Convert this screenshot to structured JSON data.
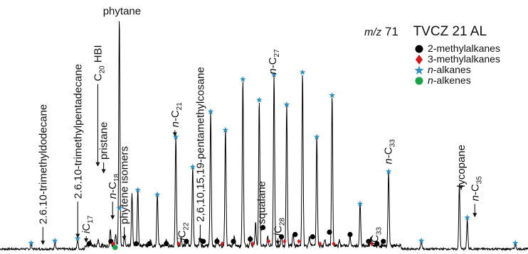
{
  "header": {
    "mz_prefix": "m/z",
    "mz_value": "71",
    "sample": "TVCZ 21 AL"
  },
  "legend": [
    {
      "symbol": "circle",
      "color": "#000000",
      "italic": "",
      "text": "2-methylalkanes"
    },
    {
      "symbol": "diamond",
      "color": "#d7191c",
      "italic": "",
      "text": "3-methylalkanes"
    },
    {
      "symbol": "star",
      "color": "#2f8fc4",
      "italic": "n",
      "text": "-alkanes"
    },
    {
      "symbol": "circle",
      "color": "#1aa34a",
      "italic": "n",
      "text": "-alkenes"
    }
  ],
  "colors": {
    "trace": "#000000",
    "alkane_star": "#2f8fc4",
    "methyl2": "#000000",
    "methyl3": "#d7191c",
    "alkene": "#1aa34a"
  },
  "chart_data": {
    "type": "line",
    "title": "",
    "xlabel": "",
    "ylabel": "",
    "xlim": [
      0,
      100
    ],
    "ylim": [
      0,
      100
    ],
    "peaks": [
      {
        "x": 5.9,
        "h": 2
      },
      {
        "x": 10.4,
        "h": 3
      },
      {
        "x": 14.7,
        "h": 4
      },
      {
        "x": 17.1,
        "h": 2
      },
      {
        "x": 18.6,
        "h": 3
      },
      {
        "x": 20.9,
        "h": 7
      },
      {
        "x": 21.9,
        "h": 5
      },
      {
        "x": 22.6,
        "h": 100
      },
      {
        "x": 23.6,
        "h": 5
      },
      {
        "x": 25.0,
        "h": 23
      },
      {
        "x": 26.1,
        "h": 25
      },
      {
        "x": 28.5,
        "h": 3
      },
      {
        "x": 29.8,
        "h": 23
      },
      {
        "x": 31.5,
        "h": 3
      },
      {
        "x": 33.3,
        "h": 48
      },
      {
        "x": 34.3,
        "h": 3
      },
      {
        "x": 35.4,
        "h": 3
      },
      {
        "x": 36.5,
        "h": 35
      },
      {
        "x": 37.9,
        "h": 4
      },
      {
        "x": 39.9,
        "h": 59
      },
      {
        "x": 41.1,
        "h": 4
      },
      {
        "x": 42.7,
        "h": 51
      },
      {
        "x": 44.4,
        "h": 4
      },
      {
        "x": 46.0,
        "h": 73
      },
      {
        "x": 47.4,
        "h": 4
      },
      {
        "x": 48.4,
        "h": 10
      },
      {
        "x": 49.1,
        "h": 64
      },
      {
        "x": 50.7,
        "h": 4
      },
      {
        "x": 51.9,
        "h": 75
      },
      {
        "x": 53.3,
        "h": 4
      },
      {
        "x": 54.3,
        "h": 62
      },
      {
        "x": 55.5,
        "h": 5
      },
      {
        "x": 57.3,
        "h": 76
      },
      {
        "x": 58.6,
        "h": 4
      },
      {
        "x": 60.0,
        "h": 48
      },
      {
        "x": 61.5,
        "h": 3
      },
      {
        "x": 62.9,
        "h": 66
      },
      {
        "x": 64.3,
        "h": 3
      },
      {
        "x": 66.3,
        "h": 5
      },
      {
        "x": 68.2,
        "h": 19
      },
      {
        "x": 70.2,
        "h": 3
      },
      {
        "x": 73.6,
        "h": 33
      },
      {
        "x": 79.8,
        "h": 3
      },
      {
        "x": 87.0,
        "h": 28
      },
      {
        "x": 88.5,
        "h": 13
      },
      {
        "x": 97.6,
        "h": 2
      }
    ],
    "alkane_markers": [
      {
        "x": 5.9,
        "y": 2
      },
      {
        "x": 10.4,
        "y": 3
      },
      {
        "x": 14.7,
        "y": 4
      },
      {
        "x": 22.6,
        "y": 17
      },
      {
        "x": 26.1,
        "y": 25
      },
      {
        "x": 29.8,
        "y": 23
      },
      {
        "x": 33.3,
        "y": 48
      },
      {
        "x": 36.5,
        "y": 35
      },
      {
        "x": 39.9,
        "y": 59
      },
      {
        "x": 42.7,
        "y": 51
      },
      {
        "x": 46.0,
        "y": 73
      },
      {
        "x": 49.1,
        "y": 64
      },
      {
        "x": 51.9,
        "y": 75
      },
      {
        "x": 54.3,
        "y": 62
      },
      {
        "x": 57.3,
        "y": 76
      },
      {
        "x": 60.0,
        "y": 48
      },
      {
        "x": 62.9,
        "y": 66
      },
      {
        "x": 68.2,
        "y": 19
      },
      {
        "x": 73.6,
        "y": 33
      },
      {
        "x": 79.8,
        "y": 3
      },
      {
        "x": 88.5,
        "y": 13
      },
      {
        "x": 97.6,
        "y": 2
      }
    ],
    "methyl2_markers": [
      {
        "x": 16.9,
        "y": 2
      },
      {
        "x": 21.0,
        "y": 3
      },
      {
        "x": 25.8,
        "y": 2
      },
      {
        "x": 28.3,
        "y": 2
      },
      {
        "x": 31.5,
        "y": 2
      },
      {
        "x": 35.3,
        "y": 3
      },
      {
        "x": 38.5,
        "y": 3
      },
      {
        "x": 41.1,
        "y": 3
      },
      {
        "x": 44.2,
        "y": 3
      },
      {
        "x": 47.4,
        "y": 4
      },
      {
        "x": 49.8,
        "y": 9
      },
      {
        "x": 53.3,
        "y": 5
      },
      {
        "x": 55.9,
        "y": 6
      },
      {
        "x": 59.2,
        "y": 5
      },
      {
        "x": 62.4,
        "y": 7
      },
      {
        "x": 66.3,
        "y": 6
      },
      {
        "x": 69.8,
        "y": 3
      },
      {
        "x": 71.4,
        "y": 2
      },
      {
        "x": 72.6,
        "y": 3
      }
    ],
    "methyl3_markers": [
      {
        "x": 21.4,
        "y": 2
      },
      {
        "x": 33.8,
        "y": 2
      },
      {
        "x": 42.1,
        "y": 2
      },
      {
        "x": 47.9,
        "y": 2
      },
      {
        "x": 50.9,
        "y": 3
      },
      {
        "x": 53.9,
        "y": 3
      },
      {
        "x": 56.6,
        "y": 3
      },
      {
        "x": 60.6,
        "y": 2
      },
      {
        "x": 63.2,
        "y": 2
      },
      {
        "x": 70.4,
        "y": 2
      }
    ],
    "alkene_markers": [
      {
        "x": 21.8,
        "y": 1
      }
    ],
    "annotations": [
      {
        "text": "2.6.10-trimethyldodecane",
        "x": 8.8,
        "y": 12,
        "rotate": -90,
        "arrow_to": 3
      },
      {
        "text": "2.6.10-trimethylpentadecane",
        "x": 15.4,
        "y": 23,
        "rotate": -90,
        "arrow_to": 6
      },
      {
        "text": "iC",
        "sub": "17",
        "x": 17.0,
        "y": 8,
        "rotate": -90,
        "arrow_to": 4
      },
      {
        "text": "C",
        "sub": "20",
        "suffix": " HBI",
        "x": 19.2,
        "y": 74,
        "rotate": -90,
        "arrow_to": 37
      },
      {
        "text": "pristane",
        "x": 20.3,
        "y": 40,
        "rotate": -90,
        "arrow_to": 34
      },
      {
        "text": "n-C",
        "sub": "18",
        "x": 22.0,
        "y": 23,
        "rotate": -90,
        "arrow_to": 14
      },
      {
        "text": "phytene isomers",
        "x": 24.2,
        "y": 12,
        "rotate": -90,
        "arrow_to": 5
      },
      {
        "text": "phytane",
        "x": 23.1,
        "y": 103,
        "rotate": 0,
        "arrow_to": null
      },
      {
        "text": "n-C",
        "sub": "21",
        "x": 33.8,
        "y": 54,
        "rotate": -90,
        "arrow_to": 50
      },
      {
        "text": "iC",
        "sub": "22",
        "x": 35.1,
        "y": 5,
        "rotate": -90,
        "arrow_to": null
      },
      {
        "text": "2,6,10,15,19-pentamethylcosane",
        "x": 38.6,
        "y": 13,
        "rotate": -90,
        "arrow_to": 4
      },
      {
        "text": "squalane",
        "x": 50.2,
        "y": 12,
        "rotate": -90,
        "arrow_to": 9
      },
      {
        "text": "iC",
        "sub": "28",
        "x": 53.3,
        "y": 7,
        "rotate": -90,
        "arrow_to": 3
      },
      {
        "text": "n-C",
        "sub": "27",
        "x": 52.3,
        "y": 77,
        "rotate": -90,
        "arrow_to": null
      },
      {
        "text": "iC",
        "sub": "33",
        "x": 71.6,
        "y": 3,
        "rotate": -90,
        "arrow_to": null
      },
      {
        "text": "n-C",
        "sub": "33",
        "x": 74.2,
        "y": 38,
        "rotate": -90,
        "arrow_to": null
      },
      {
        "text": "lycopane",
        "x": 88.0,
        "y": 28,
        "rotate": -90,
        "arrow_to": 27
      },
      {
        "text": "n-C",
        "sub": "35",
        "x": 90.6,
        "y": 22,
        "rotate": -90,
        "arrow_to": 15
      }
    ]
  }
}
